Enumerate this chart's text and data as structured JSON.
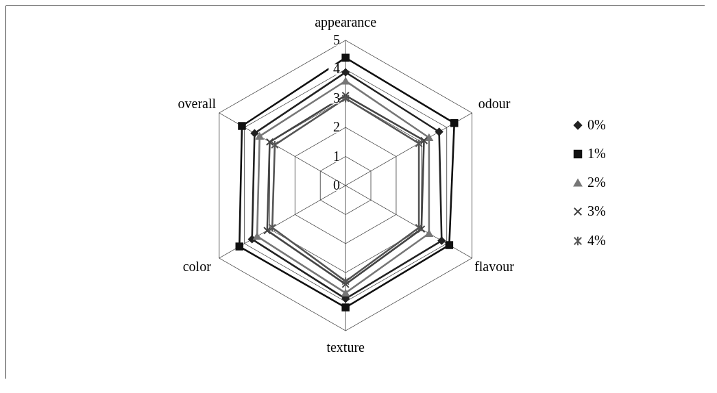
{
  "chart_data": {
    "type": "radar",
    "categories": [
      "appearance",
      "odour",
      "flavour",
      "texture",
      "color",
      "overall"
    ],
    "ylim": [
      0,
      5
    ],
    "yticks": [
      0,
      1,
      2,
      3,
      4,
      5
    ],
    "grid": true,
    "legend": "right",
    "line_style": "solid",
    "series": [
      {
        "name": "0%",
        "color": "#222222",
        "marker": "diamond",
        "values": [
          3.9,
          3.7,
          3.8,
          3.9,
          3.7,
          3.6
        ]
      },
      {
        "name": "1%",
        "color": "#111111",
        "marker": "square",
        "values": [
          4.4,
          4.3,
          4.1,
          4.2,
          4.2,
          4.1
        ]
      },
      {
        "name": "2%",
        "color": "#777777",
        "marker": "triangle",
        "values": [
          3.6,
          3.3,
          3.3,
          3.7,
          3.5,
          3.4
        ]
      },
      {
        "name": "3%",
        "color": "#444444",
        "marker": "cross",
        "values": [
          3.1,
          3.1,
          3.0,
          3.4,
          3.1,
          3.0
        ]
      },
      {
        "name": "4%",
        "color": "#555555",
        "marker": "star",
        "values": [
          3.0,
          2.9,
          2.9,
          3.3,
          2.9,
          2.8
        ]
      }
    ]
  }
}
